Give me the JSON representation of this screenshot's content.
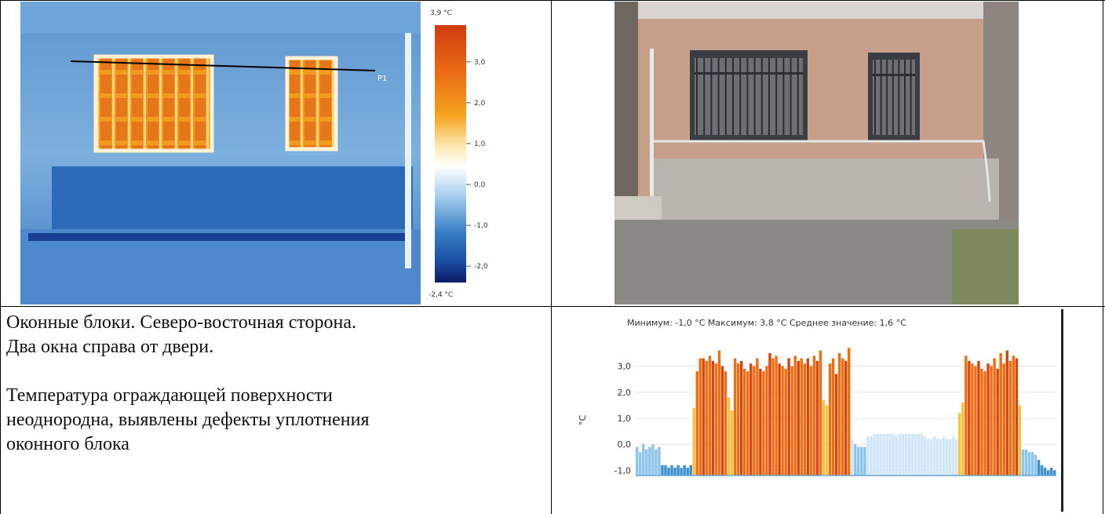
{
  "thermogram": {
    "scale_max_label": "3,9 °C",
    "scale_min_label": "-2,4 °C",
    "scale_ticks": [
      "3,0",
      "2,0",
      "1,0",
      "0,0",
      "-1,0",
      "-2,0"
    ],
    "scale_tick_values": [
      3.0,
      2.0,
      1.0,
      0.0,
      -1.0,
      -2.0
    ],
    "scale_range": [
      -2.4,
      3.9
    ],
    "profile_line_label": "P1",
    "colors": {
      "hot": "#d84a10",
      "warm": "#f3a01b",
      "neutral": "#ffffff",
      "cold": "#3f86c8",
      "coldest": "#0b1e6c"
    }
  },
  "photo": {
    "colors": {
      "wall": "#c7a08b",
      "plinth": "#b9b5ae",
      "ground": "#8a8985",
      "window_bars": "#3a3d44",
      "frame": "#6f675f"
    }
  },
  "caption": {
    "line1": "Оконные блоки. Северо-восточная сторона.",
    "line2": "Два окна справа от двери.",
    "line3": "Температура ограждающей поверхности",
    "line4": "неоднородна, выявлены дефекты уплотнения",
    "line5": "оконного блока"
  },
  "profile_chart": {
    "stats": "Минимум: -1,0 °C Максимум: 3,8 °C Среднее значение: 1,6 °C"
  },
  "chart_data": {
    "type": "bar",
    "ylabel": "°C",
    "ylim": [
      -1.2,
      3.8
    ],
    "yticks": [
      "3,0",
      "2,0",
      "1,0",
      "0,0",
      "-1,0"
    ],
    "ytick_values": [
      3.0,
      2.0,
      1.0,
      0.0,
      -1.0
    ],
    "values": [
      -0.1,
      -0.3,
      0.0,
      -0.2,
      -0.1,
      0.0,
      -0.2,
      -0.1,
      -0.8,
      -0.8,
      -0.9,
      -0.8,
      -0.9,
      -0.8,
      -0.9,
      -0.8,
      -0.9,
      -0.8,
      1.4,
      2.8,
      3.3,
      3.3,
      3.2,
      3.4,
      3.2,
      3.1,
      3.6,
      3.0,
      2.8,
      1.8,
      1.3,
      3.3,
      3.1,
      3.2,
      2.9,
      2.8,
      3.1,
      3.0,
      3.3,
      2.9,
      2.8,
      3.0,
      3.5,
      3.3,
      3.4,
      3.1,
      3.0,
      2.9,
      3.3,
      3.0,
      3.4,
      3.2,
      3.3,
      3.1,
      3.3,
      3.0,
      3.4,
      3.2,
      3.6,
      1.7,
      1.5,
      3.1,
      3.3,
      2.7,
      3.5,
      3.3,
      3.2,
      3.7,
      0.2,
      0.0,
      -0.1,
      -0.1,
      -0.1,
      0.3,
      0.3,
      0.4,
      0.4,
      0.4,
      0.4,
      0.4,
      0.4,
      0.4,
      0.3,
      0.4,
      0.4,
      0.4,
      0.4,
      0.4,
      0.4,
      0.4,
      0.4,
      0.3,
      0.2,
      0.2,
      0.3,
      0.2,
      0.2,
      0.3,
      0.2,
      0.2,
      0.3,
      0.2,
      1.2,
      1.6,
      3.4,
      3.2,
      3.1,
      3.0,
      3.2,
      2.9,
      2.8,
      3.1,
      3.0,
      3.3,
      2.9,
      3.5,
      3.1,
      3.6,
      3.2,
      3.4,
      3.3,
      1.5,
      -0.2,
      -0.2,
      -0.3,
      -0.3,
      -0.4,
      -0.6,
      -0.8,
      -0.9,
      -1.0,
      -0.9,
      -1.0
    ]
  }
}
